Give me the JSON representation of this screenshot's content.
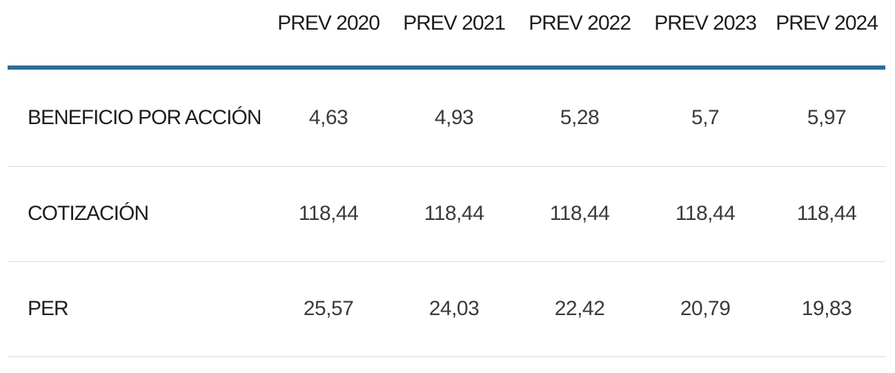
{
  "table": {
    "columns": [
      "PREV 2020",
      "PREV 2021",
      "PREV 2022",
      "PREV 2023",
      "PREV 2024"
    ],
    "rows": [
      {
        "label": "BENEFICIO POR ACCIÓN",
        "values": [
          "4,63",
          "4,93",
          "5,28",
          "5,7",
          "5,97"
        ]
      },
      {
        "label": "COTIZACIÓN",
        "values": [
          "118,44",
          "118,44",
          "118,44",
          "118,44",
          "118,44"
        ]
      },
      {
        "label": "PER",
        "values": [
          "25,57",
          "24,03",
          "22,42",
          "20,79",
          "19,83"
        ]
      }
    ]
  },
  "colors": {
    "header_rule": "#2e6b99",
    "row_divider": "#d9d9d9",
    "label_text": "#1d1d1d",
    "value_text": "#3a3a3a",
    "background": "#ffffff"
  },
  "chart_data": {
    "type": "table",
    "title": "",
    "categories": [
      "PREV 2020",
      "PREV 2021",
      "PREV 2022",
      "PREV 2023",
      "PREV 2024"
    ],
    "series": [
      {
        "name": "BENEFICIO POR ACCIÓN",
        "values": [
          4.63,
          4.93,
          5.28,
          5.7,
          5.97
        ]
      },
      {
        "name": "COTIZACIÓN",
        "values": [
          118.44,
          118.44,
          118.44,
          118.44,
          118.44
        ]
      },
      {
        "name": "PER",
        "values": [
          25.57,
          24.03,
          22.42,
          20.79,
          19.83
        ]
      }
    ]
  }
}
